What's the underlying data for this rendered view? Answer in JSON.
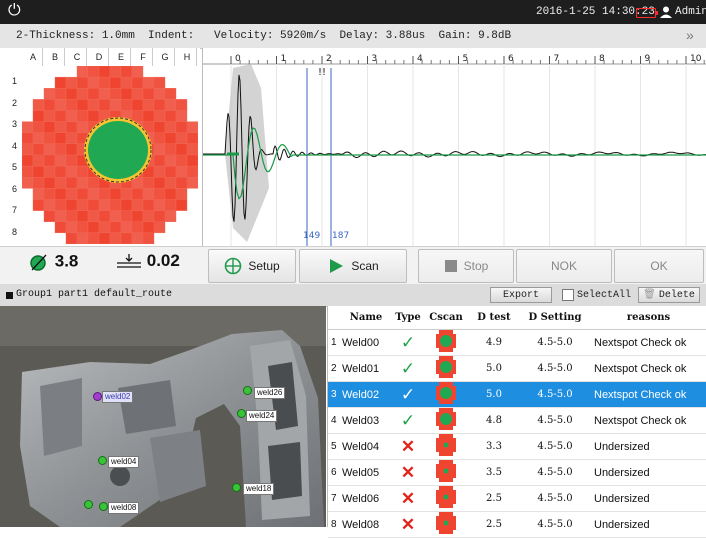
{
  "topbar": {
    "power_icon": "power-icon",
    "datetime": "2016-1-25 14:30:23",
    "user": "Admin",
    "battery_color": "#ff2a2a"
  },
  "params": {
    "text": "2-Thickness: 1.0mm  Indent:   Velocity: 5920m/s  Delay: 3.88us  Gain: 9.8dB"
  },
  "cscan": {
    "columns": [
      "A",
      "B",
      "C",
      "D",
      "E",
      "F",
      "G",
      "H"
    ],
    "rows": [
      "1",
      "2",
      "3",
      "4",
      "5",
      "6",
      "7",
      "8"
    ],
    "fill_color": "#ef4430",
    "nugget_color": "#20a853"
  },
  "waveform": {
    "ticks": [
      "0",
      "1",
      "2",
      "3",
      "4",
      "5",
      "6",
      "7",
      "8",
      "9",
      "10"
    ],
    "gate_labels": [
      "149",
      "187"
    ],
    "marker": "!!"
  },
  "measurements": {
    "diameter": "3.8",
    "thickness": "0.02"
  },
  "buttons": {
    "setup": "Setup",
    "scan": "Scan",
    "stop": "Stop",
    "nok": "NOK",
    "ok": "OK"
  },
  "route": {
    "text": "Group1 part1 default_route",
    "export": "Export",
    "select_all": "SelectAll",
    "delete": "Delete"
  },
  "photo": {
    "tags": [
      "weld02",
      "weld26",
      "weld24",
      "weld04",
      "weld18",
      "weld08"
    ]
  },
  "table": {
    "headers": [
      "Name",
      "Type",
      "Cscan",
      "D test",
      "D Setting",
      "reasons"
    ],
    "rows": [
      {
        "idx": "1",
        "name": "Weld00",
        "type": "ok",
        "d_test": "4.9",
        "d_setting": "4.5-5.0",
        "reason": "Nextspot Check ok"
      },
      {
        "idx": "2",
        "name": "Weld01",
        "type": "ok",
        "d_test": "5.0",
        "d_setting": "4.5-5.0",
        "reason": "Nextspot Check ok"
      },
      {
        "idx": "3",
        "name": "Weld02",
        "type": "ok",
        "d_test": "5.0",
        "d_setting": "4.5-5.0",
        "reason": "Nextspot Check ok"
      },
      {
        "idx": "4",
        "name": "Weld03",
        "type": "ok",
        "d_test": "4.8",
        "d_setting": "4.5-5.0",
        "reason": "Nextspot Check ok"
      },
      {
        "idx": "5",
        "name": "Weld04",
        "type": "nok",
        "d_test": "3.3",
        "d_setting": "4.5-5.0",
        "reason": "Undersized"
      },
      {
        "idx": "6",
        "name": "Weld05",
        "type": "nok",
        "d_test": "3.5",
        "d_setting": "4.5-5.0",
        "reason": "Undersized"
      },
      {
        "idx": "7",
        "name": "Weld06",
        "type": "nok",
        "d_test": "2.5",
        "d_setting": "4.5-5.0",
        "reason": "Undersized"
      },
      {
        "idx": "8",
        "name": "Weld08",
        "type": "nok",
        "d_test": "2.5",
        "d_setting": "4.5-5.0",
        "reason": "Undersized"
      }
    ],
    "selected_index": 2,
    "selected_color": "#1e8ee0"
  }
}
